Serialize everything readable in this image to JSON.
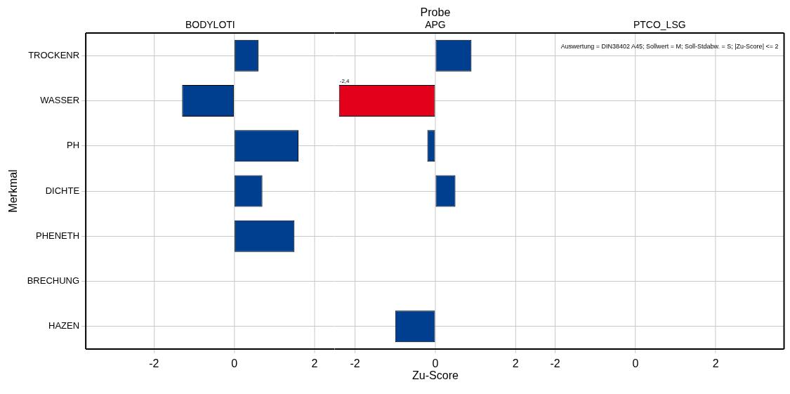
{
  "chart_data": [
    {
      "type": "bar",
      "orientation": "horizontal",
      "subtitle": "BODYLOTI",
      "ylabel": "Merkmal",
      "categories": [
        "TROCKENR",
        "WASSER",
        "PH",
        "DICHTE",
        "PHENETH",
        "BRECHUNG",
        "HAZEN"
      ],
      "values": [
        0.6,
        -1.3,
        1.6,
        0.7,
        1.5,
        null,
        null
      ],
      "colors": [
        "#003f8f",
        "#003f8f",
        "#003f8f",
        "#003f8f",
        "#003f8f",
        "#003f8f",
        "#003f8f"
      ],
      "xlim": [
        -3.7,
        2.5
      ],
      "xticks": [
        -2,
        0,
        2
      ],
      "grid": true,
      "legend": false
    },
    {
      "type": "bar",
      "orientation": "horizontal",
      "title": "Probe",
      "subtitle": "APG",
      "xlabel": "Zu-Score",
      "values": [
        0.9,
        -2.4,
        -0.2,
        0.5,
        null,
        0,
        -1.0
      ],
      "colors": [
        "#003f8f",
        "#e2001a",
        "#003f8f",
        "#003f8f",
        "#003f8f",
        "#003f8f",
        "#003f8f"
      ],
      "value_labels": [
        null,
        "-2,4",
        null,
        null,
        null,
        null,
        null
      ],
      "xlim": [
        -2.5,
        2.5
      ],
      "xticks": [
        -2,
        0,
        2
      ],
      "grid": true,
      "legend": false,
      "tick_labels": "x"
    },
    {
      "type": "bar",
      "orientation": "horizontal",
      "subtitle": "PTCO_LSG",
      "values": [
        null,
        null,
        null,
        null,
        null,
        null,
        0
      ],
      "colors": [
        "#003f8f",
        "#003f8f",
        "#003f8f",
        "#003f8f",
        "#003f8f",
        "#003f8f",
        "#003f8f"
      ],
      "annotations": [
        "Auswertung = DIN38402 A45; Sollwert = M; Soll-Stdabw. = S; |Zu-Score| <= 2"
      ],
      "xlim": [
        -2.5,
        3.7
      ],
      "xticks": [
        -2,
        0,
        2
      ],
      "grid": true,
      "legend": false,
      "tick_labels": "x"
    }
  ]
}
